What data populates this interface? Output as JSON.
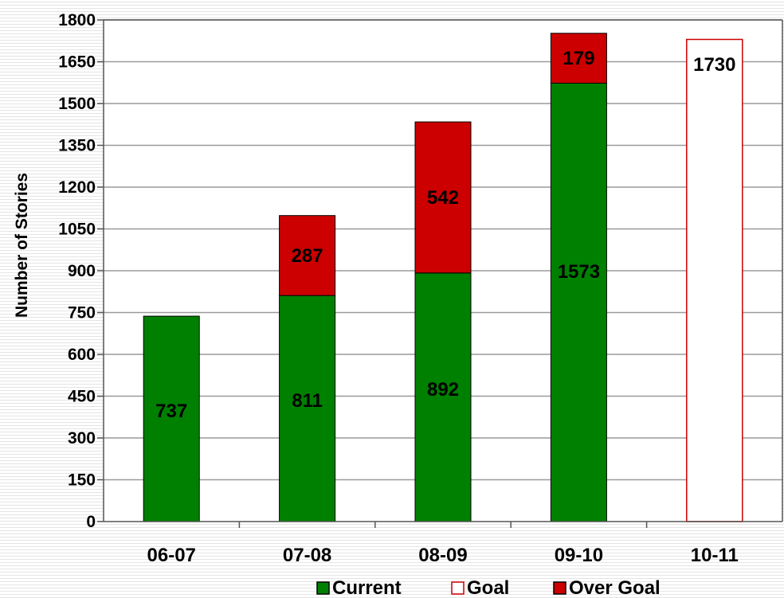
{
  "chart_data": {
    "type": "bar",
    "stacked": true,
    "ylabel": "Number of Stories",
    "xlabel": "",
    "ylim": [
      0,
      1800
    ],
    "yticks": [
      0,
      150,
      300,
      450,
      600,
      750,
      900,
      1050,
      1200,
      1350,
      1500,
      1650,
      1800
    ],
    "grid": true,
    "legend_position": "bottom",
    "categories": [
      "06-07",
      "07-08",
      "08-09",
      "09-10",
      "10-11"
    ],
    "series": [
      {
        "name": "Current",
        "color": "#008000",
        "values": [
          737,
          811,
          892,
          1573,
          null
        ]
      },
      {
        "name": "Goal",
        "color": "#cc0000",
        "style": "outline",
        "values": [
          null,
          null,
          null,
          null,
          1730
        ]
      },
      {
        "name": "Over Goal",
        "color": "#cc0000",
        "values": [
          null,
          287,
          542,
          179,
          null
        ]
      }
    ]
  }
}
